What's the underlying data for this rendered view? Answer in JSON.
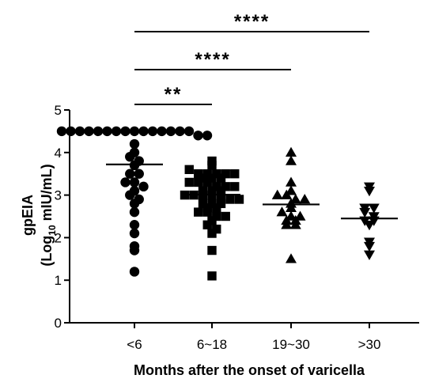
{
  "chart_data": {
    "type": "scatter",
    "xlabel": "Months after the onset of varicella",
    "ylabel_line1": "gpEIA",
    "ylabel_line2_prefix": "(Log",
    "ylabel_line2_sub": "10",
    "ylabel_line2_suffix": " mIU/mL)",
    "ylim": [
      0,
      5
    ],
    "yticks": [
      "0",
      "1",
      "2",
      "3",
      "4",
      "5"
    ],
    "categories": [
      "<6",
      "6~18",
      "19~30",
      ">30"
    ],
    "groups": [
      {
        "category": "<6",
        "marker": "circle",
        "mean": 3.72,
        "values": [
          4.5,
          4.5,
          4.5,
          4.5,
          4.5,
          4.5,
          4.5,
          4.5,
          4.5,
          4.5,
          4.5,
          4.5,
          4.5,
          4.5,
          4.5,
          4.4,
          4.4,
          4.2,
          4.0,
          3.9,
          3.8,
          3.7,
          3.5,
          3.5,
          3.3,
          3.3,
          3.2,
          3.1,
          3.0,
          2.9,
          2.8,
          2.6,
          2.3,
          2.1,
          1.8,
          1.7,
          1.2
        ]
      },
      {
        "category": "6~18",
        "marker": "square",
        "mean": 3.01,
        "values": [
          3.8,
          3.7,
          3.6,
          3.5,
          3.5,
          3.5,
          3.5,
          3.5,
          3.4,
          3.4,
          3.4,
          3.3,
          3.3,
          3.3,
          3.2,
          3.2,
          3.2,
          3.1,
          3.1,
          3.1,
          3.0,
          3.0,
          3.0,
          3.0,
          2.9,
          2.9,
          2.9,
          2.8,
          2.8,
          2.8,
          2.7,
          2.7,
          2.6,
          2.6,
          2.5,
          2.5,
          2.4,
          2.3,
          2.2,
          2.1,
          1.7,
          1.1
        ]
      },
      {
        "category": "19~30",
        "marker": "triangle-up",
        "mean": 2.78,
        "values": [
          4.0,
          3.8,
          3.3,
          3.1,
          3.0,
          3.0,
          2.9,
          2.9,
          2.8,
          2.7,
          2.6,
          2.5,
          2.5,
          2.4,
          2.4,
          2.3,
          2.3,
          1.5
        ]
      },
      {
        "category": ">30",
        "marker": "triangle-down",
        "mean": 2.45,
        "values": [
          3.2,
          3.1,
          2.7,
          2.7,
          2.6,
          2.5,
          2.4,
          2.4,
          2.3,
          1.9,
          1.8,
          1.6
        ]
      }
    ],
    "comparisons": [
      {
        "from": "<6",
        "to": "6~18",
        "label": "**"
      },
      {
        "from": "<6",
        "to": "19~30",
        "label": "****"
      },
      {
        "from": "<6",
        "to": ">30",
        "label": "****"
      }
    ]
  }
}
